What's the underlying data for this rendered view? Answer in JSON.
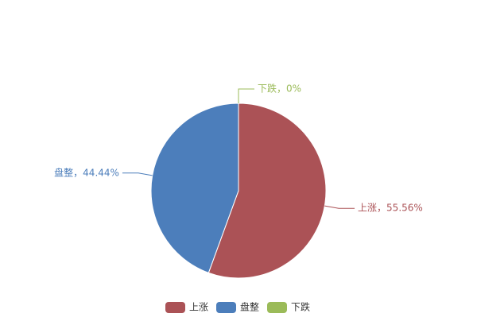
{
  "chart_data": {
    "type": "pie",
    "categories": [
      "上涨",
      "盘整",
      "下跌"
    ],
    "values": [
      55.56,
      44.44,
      0
    ],
    "value_labels": [
      "上涨，55.56%",
      "盘整，44.44%",
      "下跌，0%"
    ],
    "colors": [
      "#ab5256",
      "#4c7ebb",
      "#9bbb59"
    ],
    "legend": "bottom"
  }
}
